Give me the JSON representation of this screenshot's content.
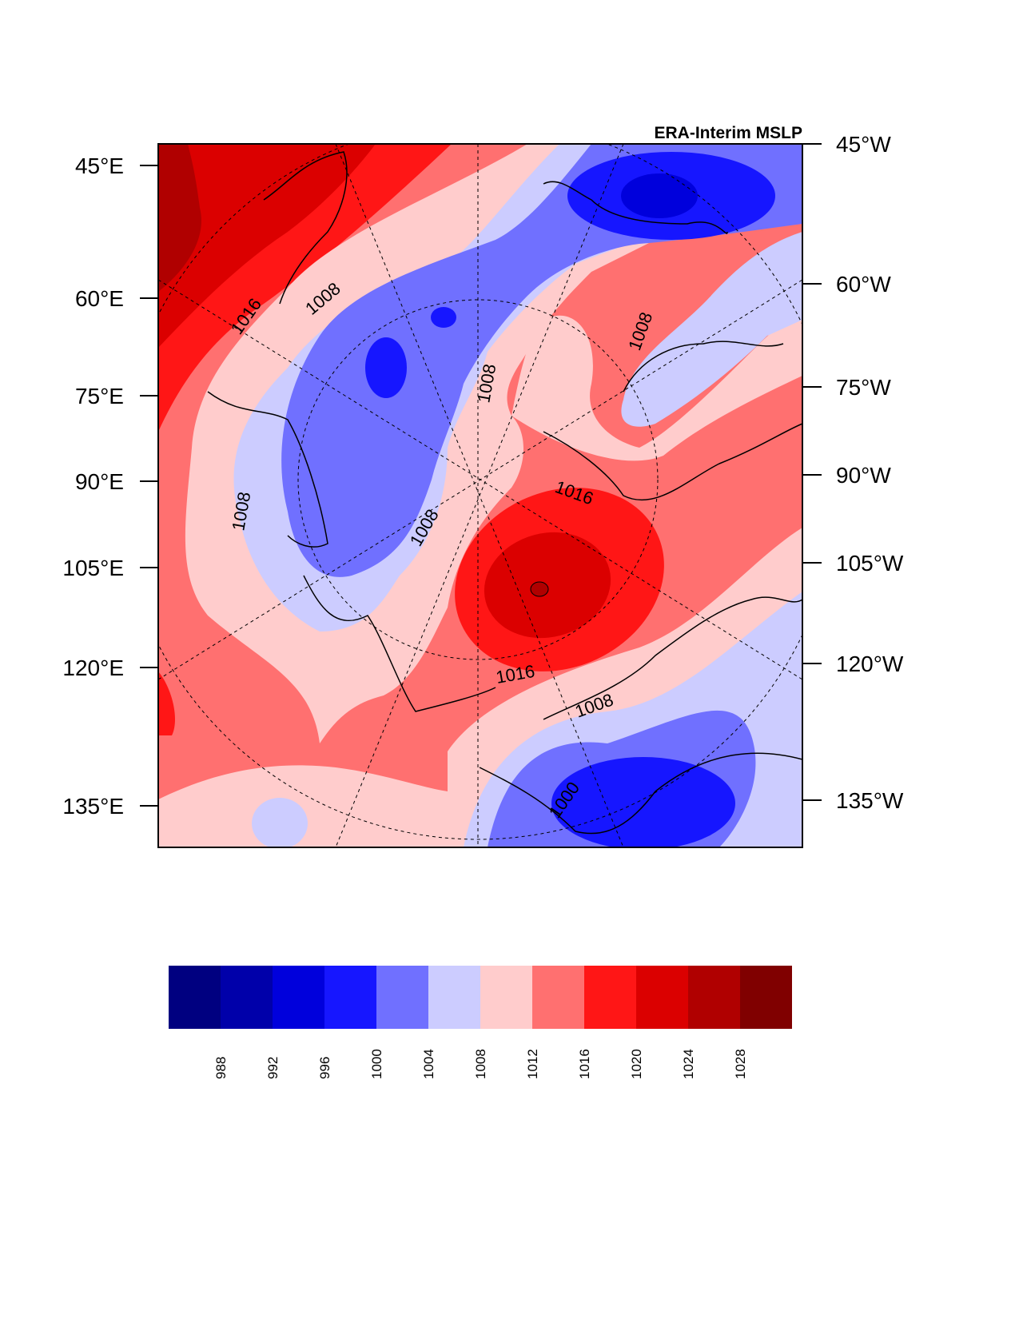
{
  "title": "ERA-Interim MSLP",
  "left_lat_labels": [
    "45°E",
    "60°E",
    "75°E",
    "90°E",
    "105°E",
    "120°E",
    "135°E"
  ],
  "right_lat_labels": [
    "45°W",
    "60°W",
    "75°W",
    "90°W",
    "105°W",
    "120°W",
    "135°W"
  ],
  "contour_labels": [
    "1016",
    "1008",
    "1008",
    "1008",
    "1008",
    "1008",
    "1016",
    "1016",
    "1008",
    "1000"
  ],
  "colorbar": {
    "colors": [
      "#000080",
      "#0000AA",
      "#0000DC",
      "#1616FF",
      "#7070FF",
      "#CCCCFF",
      "#FFCCCC",
      "#FF7070",
      "#FF1616",
      "#DB0000",
      "#B00000",
      "#800000"
    ],
    "labels": [
      "988",
      "992",
      "996",
      "1000",
      "1004",
      "1008",
      "1012",
      "1016",
      "1020",
      "1024",
      "1028"
    ]
  }
}
